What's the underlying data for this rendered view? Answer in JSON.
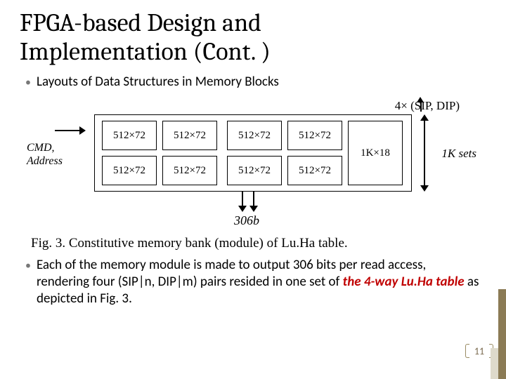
{
  "title_line1": "FPGA-based Design and",
  "title_line2": "Implementation (Cont. )",
  "bullet1": "Layouts of Data Structures in Memory Blocks",
  "figure": {
    "qty_label": "4× (SIP, DIP)",
    "cmd_label_l1": "CMD,",
    "cmd_label_l2": "Address",
    "sets_label": "1K sets",
    "bits_label": "306b",
    "cells": {
      "r1c1": "512×72",
      "r1c2": "512×72",
      "r1c3": "512×72",
      "r1c4": "512×72",
      "r1c5": "1K×18",
      "r2c1": "512×72",
      "r2c2": "512×72",
      "r2c3": "512×72",
      "r2c4": "512×72"
    },
    "caption": "Fig. 3.  Constitutive memory bank (module) of Lu.Ha table."
  },
  "bullet2_pre": "Each of the memory module is made to output 306 bits per read access, rendering four (SIP|n, DIP|m) pairs resided in one set of ",
  "bullet2_bold": "the 4-way Lu.Ha table",
  "bullet2_post": " as depicted in Fig. 3.",
  "page_number": "11"
}
